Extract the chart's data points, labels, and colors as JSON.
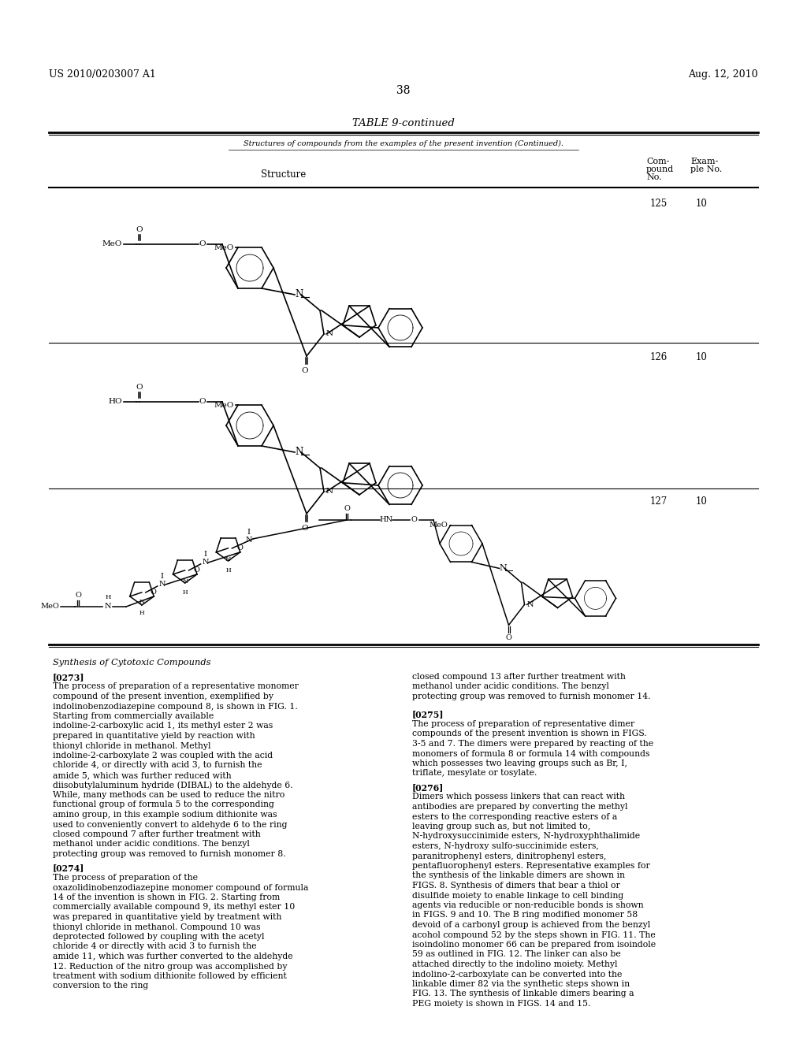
{
  "background_color": "#ffffff",
  "page_width": 10.24,
  "page_height": 13.2,
  "dpi": 100,
  "header_left": "US 2010/0203007 A1",
  "header_right": "Aug. 12, 2010",
  "page_number": "38",
  "table_title": "TABLE 9-continued",
  "table_subtitle": "Structures of compounds from the examples of the present invention (Continued).",
  "col1_header": "Structure",
  "col2_header_line1": "Com-",
  "col2_header_line2": "pound",
  "col2_header_line3": "No.",
  "col3_header_line1": "Exam-",
  "col3_header_line2": "ple No.",
  "compound_numbers": [
    "125",
    "126",
    "127"
  ],
  "example_numbers": [
    "10",
    "10",
    "10"
  ],
  "section_title": "Synthesis of Cytotoxic Compounds",
  "para0_tag": "[0273]",
  "para0_text": "The process of preparation of a representative monomer compound of the present invention, exemplified by indolinobenzodiazepine compound 8, is shown in FIG. 1. Starting from commercially available indoline-2-carboxylic acid 1, its methyl ester 2 was prepared in quantitative yield by reaction with thionyl chloride in methanol. Methyl indoline-2-carboxylate 2 was coupled with the acid chloride 4, or directly with acid 3, to furnish the amide 5, which was further reduced with diisobutylaluminum hydride (DIBAL) to the aldehyde 6. While, many methods can be used to reduce the nitro functional group of formula 5 to the corresponding amino group, in this example sodium dithionite was used to conveniently convert to aldehyde 6 to the ring closed compound 7 after further treatment with methanol under acidic conditions. The benzyl protecting group was removed to furnish monomer 8.",
  "para1_tag": "[0274]",
  "para1_text": "The process of preparation of the oxazolidinobenzodiazepine monomer compound of formula 14 of the invention is shown in FIG. 2. Starting from commercially available compound 9, its methyl ester 10 was prepared in quantitative yield by treatment with thionyl chloride in methanol. Compound 10 was deprotected followed by coupling with the acetyl chloride 4 or directly with acid 3 to furnish the amide 11, which was further converted to the aldehyde 12. Reduction of the nitro group was accomplished by treatment with sodium dithionite followed by efficient conversion to the ring",
  "para_right0_text": "closed compound 13 after further treatment with methanol under acidic conditions. The benzyl protecting group was removed to furnish monomer 14.",
  "para2_tag": "[0275]",
  "para2_text": "The process of preparation of representative dimer compounds of the present invention is shown in FIGS. 3-5 and 7. The dimers were prepared by reacting of the monomers of formula 8 or formula 14 with compounds which possesses two leaving groups such as Br, I, triflate, mesylate or tosylate.",
  "para3_tag": "[0276]",
  "para3_text": "Dimers which possess linkers that can react with antibodies are prepared by converting the methyl esters to the corresponding reactive esters of a leaving group such as, but not limited to, N-hydroxysuccinimide esters, N-hydroxyphthalimide esters, N-hydroxy sulfo-succinimide esters, paranitrophenyl esters, dinitrophenyl esters, pentafluorophenyl esters. Representative examples for the synthesis of the linkable dimers are shown in FIGS. 8. Synthesis of dimers that bear a thiol or disulfide moiety to enable linkage to cell binding agents via reducible or non-reducible bonds is shown in FIGS. 9 and 10. The B ring modified monomer 58 devoid of a carbonyl group is achieved from the benzyl acohol compound 52 by the steps shown in FIG. 11. The isoindolino monomer 66 can be prepared from isoindole 59 as outlined in FIG. 12. The linker can also be attached directly to the indolino moiety. Methyl indolino-2-carboxylate can be converted into the linkable dimer 82 via the synthetic steps shown in FIG. 13. The synthesis of linkable dimers bearing a PEG moiety is shown in FIGS. 14 and 15."
}
